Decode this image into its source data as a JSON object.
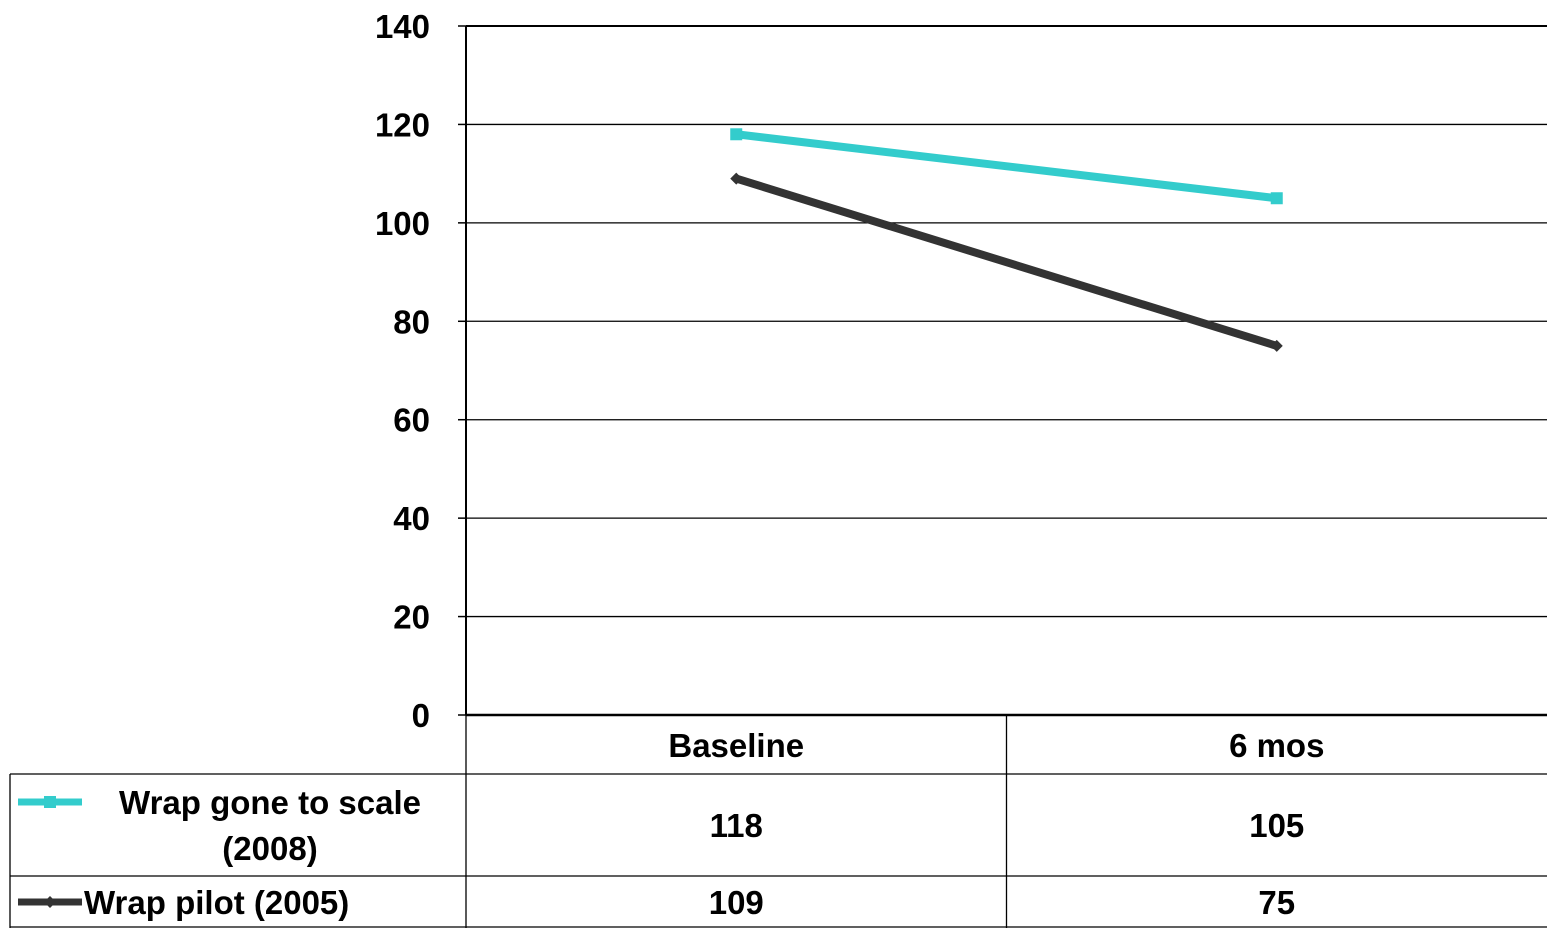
{
  "chart_data": {
    "type": "line",
    "title": "",
    "xlabel": "",
    "ylabel": "",
    "categories": [
      "Baseline",
      "6 mos"
    ],
    "ylim": [
      0,
      140
    ],
    "yticks": [
      "0",
      "20",
      "40",
      "60",
      "80",
      "100",
      "120",
      "140"
    ],
    "grid": true,
    "legend": "data-table",
    "series": [
      {
        "name": "Wrap gone to scale (2008)",
        "values": [
          118,
          105
        ],
        "color": "#33CCCC",
        "marker": "square"
      },
      {
        "name": "Wrap pilot (2005)",
        "values": [
          109,
          75
        ],
        "color": "#333333",
        "marker": "diamond"
      }
    ],
    "table": {
      "rows": [
        {
          "label": "Wrap gone to scale (2008)",
          "cells": [
            "118",
            "105"
          ]
        },
        {
          "label": "Wrap pilot (2005)",
          "cells": [
            "109",
            "75"
          ]
        }
      ]
    }
  }
}
